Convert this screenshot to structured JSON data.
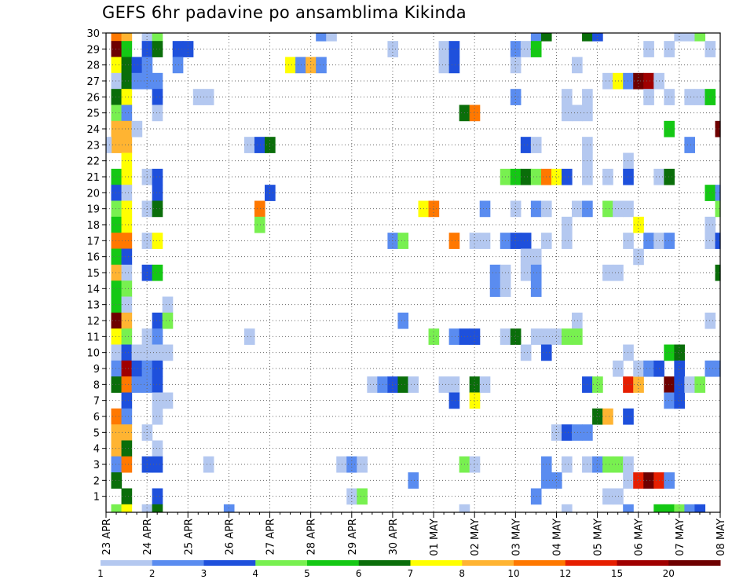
{
  "chart_data": {
    "type": "heatmap",
    "title": "GEFS 6hr padavine po ansamblima Kikinda",
    "xlabel": "",
    "ylabel": "",
    "x_tick_labels": [
      "23 APR",
      "24 APR",
      "25 APR",
      "26 APR",
      "27 APR",
      "28 APR",
      "29 APR",
      "30 APR",
      "01 MAY",
      "02 MAY",
      "03 MAY",
      "04 MAY",
      "05 MAY",
      "06 MAY",
      "07 MAY",
      "08 MAY"
    ],
    "x_range": [
      0,
      60
    ],
    "y_range": [
      0,
      30
    ],
    "y_ticks": [
      1,
      2,
      3,
      4,
      5,
      6,
      7,
      8,
      9,
      10,
      11,
      12,
      13,
      14,
      15,
      16,
      17,
      18,
      19,
      20,
      21,
      22,
      23,
      24,
      25,
      26,
      27,
      28,
      29,
      30
    ],
    "grid": true,
    "colorbar": {
      "labels": [
        "1",
        "2",
        "3",
        "4",
        "5",
        "6",
        "7",
        "8",
        "10",
        "12",
        "15",
        "20"
      ],
      "colors": [
        "#b4c8f0",
        "#5a8cf0",
        "#1e50dc",
        "#78f050",
        "#14c814",
        "#0a6e0a",
        "#ffff00",
        "#ffb432",
        "#ff7800",
        "#e61e00",
        "#a00000",
        "#6e0000"
      ]
    },
    "cells": [
      [
        1,
        30,
        8
      ],
      [
        1,
        29,
        11
      ],
      [
        1,
        28,
        6
      ],
      [
        1,
        27,
        0
      ],
      [
        1,
        26,
        5
      ],
      [
        1,
        25,
        3
      ],
      [
        1,
        24,
        7
      ],
      [
        1,
        23,
        7
      ],
      [
        1,
        21,
        4
      ],
      [
        1,
        20,
        2
      ],
      [
        1,
        19,
        3
      ],
      [
        1,
        18,
        4
      ],
      [
        1,
        17,
        8
      ],
      [
        1,
        16,
        4
      ],
      [
        1,
        15,
        7
      ],
      [
        1,
        14,
        4
      ],
      [
        1,
        13,
        4
      ],
      [
        1,
        12,
        11
      ],
      [
        1,
        11,
        6
      ],
      [
        1,
        10,
        0
      ],
      [
        1,
        9,
        1
      ],
      [
        1,
        8,
        5
      ],
      [
        1,
        6,
        8
      ],
      [
        1,
        5,
        7
      ],
      [
        1,
        4,
        7
      ],
      [
        1,
        3,
        1
      ],
      [
        1,
        2,
        5
      ],
      [
        1,
        0,
        3
      ],
      [
        0,
        23,
        0
      ],
      [
        2,
        30,
        7
      ],
      [
        2,
        29,
        4
      ],
      [
        2,
        28,
        5
      ],
      [
        2,
        27,
        5
      ],
      [
        2,
        26,
        6
      ],
      [
        2,
        25,
        1
      ],
      [
        2,
        24,
        7
      ],
      [
        2,
        23,
        7
      ],
      [
        2,
        22,
        6
      ],
      [
        2,
        21,
        6
      ],
      [
        2,
        20,
        0
      ],
      [
        2,
        19,
        6
      ],
      [
        2,
        18,
        6
      ],
      [
        2,
        17,
        8
      ],
      [
        2,
        16,
        2
      ],
      [
        2,
        15,
        0
      ],
      [
        2,
        14,
        3
      ],
      [
        2,
        13,
        0
      ],
      [
        2,
        12,
        7
      ],
      [
        2,
        11,
        3
      ],
      [
        2,
        10,
        2
      ],
      [
        2,
        9,
        10
      ],
      [
        2,
        8,
        8
      ],
      [
        2,
        7,
        2
      ],
      [
        2,
        6,
        1
      ],
      [
        2,
        5,
        7
      ],
      [
        2,
        4,
        5
      ],
      [
        2,
        3,
        8
      ],
      [
        2,
        1,
        5
      ],
      [
        2,
        0,
        6
      ],
      [
        3,
        28,
        2
      ],
      [
        3,
        27,
        1
      ],
      [
        3,
        24,
        0
      ],
      [
        3,
        10,
        0
      ],
      [
        3,
        9,
        2
      ],
      [
        3,
        8,
        1
      ],
      [
        4,
        30,
        0
      ],
      [
        4,
        29,
        2
      ],
      [
        4,
        28,
        1
      ],
      [
        4,
        27,
        1
      ],
      [
        4,
        21,
        0
      ],
      [
        4,
        19,
        0
      ],
      [
        4,
        17,
        0
      ],
      [
        4,
        15,
        2
      ],
      [
        4,
        11,
        0
      ],
      [
        4,
        10,
        0
      ],
      [
        4,
        9,
        1
      ],
      [
        4,
        8,
        1
      ],
      [
        4,
        5,
        0
      ],
      [
        4,
        3,
        2
      ],
      [
        4,
        0,
        0
      ],
      [
        5,
        30,
        3
      ],
      [
        5,
        29,
        5
      ],
      [
        5,
        27,
        1
      ],
      [
        5,
        26,
        2
      ],
      [
        5,
        25,
        0
      ],
      [
        5,
        21,
        2
      ],
      [
        5,
        20,
        2
      ],
      [
        5,
        19,
        5
      ],
      [
        5,
        17,
        6
      ],
      [
        5,
        15,
        4
      ],
      [
        5,
        12,
        2
      ],
      [
        5,
        11,
        1
      ],
      [
        5,
        10,
        0
      ],
      [
        5,
        9,
        2
      ],
      [
        5,
        8,
        2
      ],
      [
        5,
        7,
        0
      ],
      [
        5,
        6,
        0
      ],
      [
        5,
        4,
        0
      ],
      [
        5,
        3,
        2
      ],
      [
        5,
        1,
        2
      ],
      [
        5,
        0,
        5
      ],
      [
        6,
        13,
        0
      ],
      [
        6,
        12,
        3
      ],
      [
        6,
        10,
        0
      ],
      [
        6,
        7,
        0
      ],
      [
        7,
        29,
        2
      ],
      [
        7,
        28,
        1
      ],
      [
        8,
        29,
        2
      ],
      [
        9,
        26,
        0
      ],
      [
        10,
        26,
        0
      ],
      [
        10,
        3,
        0
      ],
      [
        12,
        0,
        1
      ],
      [
        14,
        23,
        0
      ],
      [
        14,
        11,
        0
      ],
      [
        15,
        23,
        2
      ],
      [
        15,
        19,
        8
      ],
      [
        15,
        18,
        3
      ],
      [
        16,
        23,
        5
      ],
      [
        16,
        20,
        2
      ],
      [
        18,
        28,
        6
      ],
      [
        19,
        28,
        1
      ],
      [
        20,
        28,
        7
      ],
      [
        21,
        30,
        1
      ],
      [
        21,
        28,
        1
      ],
      [
        22,
        30,
        0
      ],
      [
        23,
        3,
        0
      ],
      [
        24,
        3,
        1
      ],
      [
        24,
        1,
        0
      ],
      [
        25,
        3,
        0
      ],
      [
        25,
        1,
        3
      ],
      [
        26,
        8,
        0
      ],
      [
        27,
        8,
        1
      ],
      [
        28,
        29,
        0
      ],
      [
        28,
        17,
        1
      ],
      [
        28,
        8,
        2
      ],
      [
        29,
        17,
        3
      ],
      [
        29,
        12,
        1
      ],
      [
        29,
        8,
        5
      ],
      [
        30,
        8,
        0
      ],
      [
        30,
        2,
        1
      ],
      [
        31,
        19,
        6
      ],
      [
        32,
        19,
        8
      ],
      [
        32,
        11,
        3
      ],
      [
        33,
        29,
        0
      ],
      [
        33,
        28,
        0
      ],
      [
        33,
        8,
        0
      ],
      [
        34,
        29,
        2
      ],
      [
        34,
        28,
        2
      ],
      [
        34,
        17,
        8
      ],
      [
        34,
        11,
        1
      ],
      [
        34,
        8,
        0
      ],
      [
        34,
        7,
        2
      ],
      [
        35,
        25,
        5
      ],
      [
        35,
        11,
        2
      ],
      [
        35,
        3,
        3
      ],
      [
        35,
        0,
        0
      ],
      [
        36,
        25,
        8
      ],
      [
        36,
        17,
        0
      ],
      [
        36,
        11,
        2
      ],
      [
        36,
        8,
        5
      ],
      [
        36,
        7,
        6
      ],
      [
        36,
        3,
        0
      ],
      [
        37,
        19,
        1
      ],
      [
        37,
        17,
        0
      ],
      [
        37,
        8,
        0
      ],
      [
        38,
        15,
        1
      ],
      [
        38,
        14,
        1
      ],
      [
        39,
        21,
        3
      ],
      [
        39,
        17,
        1
      ],
      [
        39,
        15,
        0
      ],
      [
        39,
        14,
        0
      ],
      [
        39,
        11,
        0
      ],
      [
        40,
        29,
        1
      ],
      [
        40,
        28,
        0
      ],
      [
        40,
        26,
        1
      ],
      [
        40,
        21,
        4
      ],
      [
        40,
        19,
        0
      ],
      [
        40,
        17,
        2
      ],
      [
        40,
        11,
        5
      ],
      [
        41,
        29,
        0
      ],
      [
        41,
        23,
        2
      ],
      [
        41,
        21,
        5
      ],
      [
        41,
        17,
        2
      ],
      [
        41,
        16,
        0
      ],
      [
        41,
        15,
        0
      ],
      [
        41,
        10,
        0
      ],
      [
        42,
        30,
        1
      ],
      [
        42,
        29,
        4
      ],
      [
        42,
        23,
        0
      ],
      [
        42,
        21,
        3
      ],
      [
        42,
        19,
        1
      ],
      [
        42,
        16,
        0
      ],
      [
        42,
        15,
        1
      ],
      [
        42,
        14,
        1
      ],
      [
        42,
        11,
        0
      ],
      [
        42,
        1,
        1
      ],
      [
        43,
        30,
        5
      ],
      [
        43,
        21,
        8
      ],
      [
        43,
        19,
        0
      ],
      [
        43,
        17,
        0
      ],
      [
        43,
        11,
        0
      ],
      [
        43,
        10,
        2
      ],
      [
        43,
        3,
        1
      ],
      [
        43,
        2,
        1
      ],
      [
        44,
        21,
        6
      ],
      [
        44,
        11,
        0
      ],
      [
        44,
        5,
        0
      ],
      [
        44,
        2,
        1
      ],
      [
        45,
        26,
        0
      ],
      [
        45,
        25,
        0
      ],
      [
        45,
        21,
        2
      ],
      [
        45,
        18,
        0
      ],
      [
        45,
        17,
        0
      ],
      [
        45,
        11,
        3
      ],
      [
        45,
        5,
        2
      ],
      [
        45,
        3,
        0
      ],
      [
        45,
        0,
        0
      ],
      [
        46,
        28,
        0
      ],
      [
        46,
        25,
        0
      ],
      [
        46,
        19,
        0
      ],
      [
        46,
        12,
        0
      ],
      [
        46,
        11,
        3
      ],
      [
        46,
        5,
        1
      ],
      [
        47,
        30,
        5
      ],
      [
        47,
        26,
        0
      ],
      [
        47,
        25,
        0
      ],
      [
        47,
        23,
        0
      ],
      [
        47,
        22,
        0
      ],
      [
        47,
        21,
        0
      ],
      [
        47,
        19,
        1
      ],
      [
        47,
        8,
        2
      ],
      [
        47,
        5,
        1
      ],
      [
        47,
        3,
        0
      ],
      [
        48,
        30,
        2
      ],
      [
        48,
        8,
        3
      ],
      [
        48,
        6,
        5
      ],
      [
        48,
        3,
        1
      ],
      [
        49,
        27,
        0
      ],
      [
        49,
        21,
        0
      ],
      [
        49,
        19,
        3
      ],
      [
        49,
        15,
        0
      ],
      [
        49,
        6,
        7
      ],
      [
        49,
        3,
        3
      ],
      [
        49,
        1,
        0
      ],
      [
        50,
        27,
        6
      ],
      [
        50,
        19,
        0
      ],
      [
        50,
        15,
        0
      ],
      [
        50,
        9,
        0
      ],
      [
        50,
        3,
        3
      ],
      [
        50,
        1,
        0
      ],
      [
        51,
        27,
        1
      ],
      [
        51,
        22,
        0
      ],
      [
        51,
        21,
        2
      ],
      [
        51,
        19,
        0
      ],
      [
        51,
        17,
        0
      ],
      [
        51,
        10,
        0
      ],
      [
        51,
        8,
        9
      ],
      [
        51,
        6,
        2
      ],
      [
        51,
        3,
        0
      ],
      [
        51,
        2,
        0
      ],
      [
        51,
        0,
        1
      ],
      [
        52,
        27,
        11
      ],
      [
        52,
        18,
        6
      ],
      [
        52,
        16,
        0
      ],
      [
        52,
        8,
        7
      ],
      [
        52,
        9,
        0
      ],
      [
        52,
        2,
        9
      ],
      [
        53,
        29,
        0
      ],
      [
        53,
        27,
        10
      ],
      [
        53,
        26,
        0
      ],
      [
        53,
        17,
        1
      ],
      [
        53,
        9,
        1
      ],
      [
        53,
        2,
        11
      ],
      [
        54,
        27,
        0
      ],
      [
        54,
        21,
        0
      ],
      [
        54,
        17,
        0
      ],
      [
        54,
        9,
        2
      ],
      [
        54,
        2,
        9
      ],
      [
        54,
        0,
        4
      ],
      [
        55,
        29,
        0
      ],
      [
        55,
        26,
        0
      ],
      [
        55,
        24,
        4
      ],
      [
        55,
        21,
        5
      ],
      [
        55,
        17,
        1
      ],
      [
        55,
        10,
        4
      ],
      [
        55,
        8,
        11
      ],
      [
        55,
        7,
        1
      ],
      [
        55,
        2,
        1
      ],
      [
        55,
        0,
        4
      ],
      [
        56,
        30,
        0
      ],
      [
        56,
        10,
        5
      ],
      [
        56,
        9,
        2
      ],
      [
        56,
        8,
        2
      ],
      [
        56,
        7,
        2
      ],
      [
        56,
        0,
        3
      ],
      [
        57,
        30,
        0
      ],
      [
        57,
        26,
        0
      ],
      [
        57,
        23,
        1
      ],
      [
        57,
        8,
        0
      ],
      [
        57,
        0,
        1
      ],
      [
        58,
        30,
        3
      ],
      [
        58,
        26,
        0
      ],
      [
        58,
        8,
        3
      ],
      [
        58,
        0,
        2
      ],
      [
        59,
        29,
        0
      ],
      [
        59,
        26,
        4
      ],
      [
        59,
        20,
        4
      ],
      [
        59,
        18,
        0
      ],
      [
        59,
        17,
        0
      ],
      [
        59,
        12,
        0
      ],
      [
        59,
        9,
        1
      ],
      [
        60,
        24,
        11
      ],
      [
        60,
        20,
        1
      ],
      [
        60,
        19,
        3
      ],
      [
        60,
        17,
        2
      ],
      [
        60,
        15,
        5
      ],
      [
        60,
        9,
        1
      ]
    ]
  }
}
